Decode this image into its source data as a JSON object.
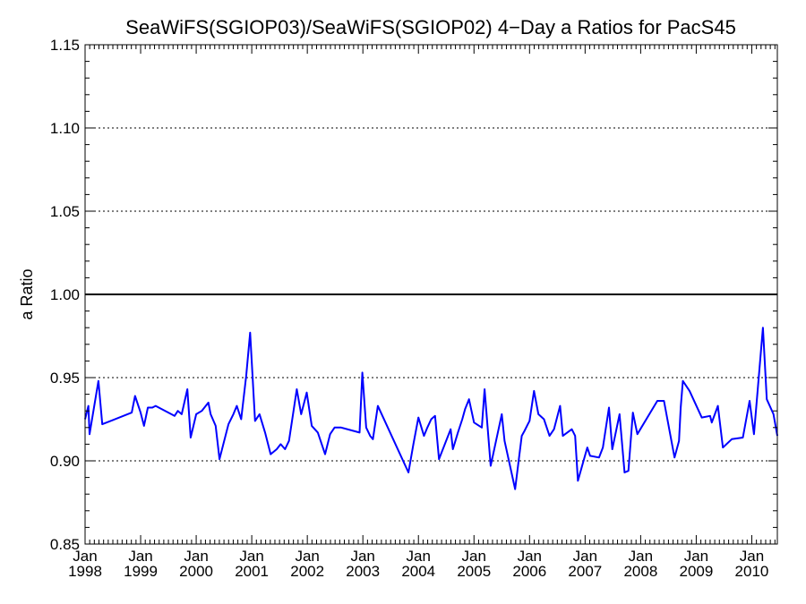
{
  "chart_data": {
    "type": "line",
    "title": "SeaWiFS(SGIOP03)/SeaWiFS(SGIOP02) 4−Day a Ratios for PacS45",
    "xlabel": "",
    "ylabel": "a Ratio",
    "xlim": [
      1998.0,
      2010.46
    ],
    "ylim": [
      0.85,
      1.15
    ],
    "yticks": [
      "0.85",
      "0.90",
      "0.95",
      "1.00",
      "1.05",
      "1.10",
      "1.15"
    ],
    "ytick_values": [
      0.85,
      0.9,
      0.95,
      1.0,
      1.05,
      1.1,
      1.15
    ],
    "xticks": [
      {
        "month": "Jan",
        "year": "1998",
        "t": 1998
      },
      {
        "month": "Jan",
        "year": "1999",
        "t": 1999
      },
      {
        "month": "Jan",
        "year": "2000",
        "t": 2000
      },
      {
        "month": "Jan",
        "year": "2001",
        "t": 2001
      },
      {
        "month": "Jan",
        "year": "2002",
        "t": 2002
      },
      {
        "month": "Jan",
        "year": "2003",
        "t": 2003
      },
      {
        "month": "Jan",
        "year": "2004",
        "t": 2004
      },
      {
        "month": "Jan",
        "year": "2005",
        "t": 2005
      },
      {
        "month": "Jan",
        "year": "2006",
        "t": 2006
      },
      {
        "month": "Jan",
        "year": "2007",
        "t": 2007
      },
      {
        "month": "Jan",
        "year": "2008",
        "t": 2008
      },
      {
        "month": "Jan",
        "year": "2009",
        "t": 2009
      },
      {
        "month": "Jan",
        "year": "2010",
        "t": 2010
      }
    ],
    "grid_y": [
      0.9,
      0.95,
      1.05,
      1.1
    ],
    "reference_line": 1.0,
    "series_color": "#0000ff",
    "series": [
      {
        "x": [
          1998.0,
          1998.06,
          1998.08,
          1998.24,
          1998.31,
          1998.84,
          1998.9,
          1999.0,
          1999.06,
          1999.13,
          1999.21,
          1999.27,
          1999.61,
          1999.67,
          1999.74,
          1999.84,
          1999.9,
          2000.0,
          2000.1,
          2000.22,
          2000.26,
          2000.35,
          2000.42,
          2000.58,
          2000.67,
          2000.73,
          2000.81,
          2000.9,
          2000.97,
          2001.06,
          2001.14,
          2001.24,
          2001.34,
          2001.45,
          2001.52,
          2001.6,
          2001.67,
          2001.81,
          2001.89,
          2001.99,
          2002.08,
          2002.19,
          2002.32,
          2002.41,
          2002.49,
          2002.61,
          2002.94,
          2002.99,
          2003.06,
          2003.13,
          2003.18,
          2003.27,
          2003.82,
          2003.91,
          2004.0,
          2004.1,
          2004.16,
          2004.23,
          2004.3,
          2004.37,
          2004.58,
          2004.62,
          2004.71,
          2004.79,
          2004.84,
          2004.91,
          2005.0,
          2005.14,
          2005.19,
          2005.3,
          2005.5,
          2005.55,
          2005.74,
          2005.86,
          2005.91,
          2005.97,
          2006.0,
          2006.08,
          2006.16,
          2006.26,
          2006.36,
          2006.44,
          2006.55,
          2006.6,
          2006.76,
          2006.82,
          2006.87,
          2007.04,
          2007.09,
          2007.25,
          2007.32,
          2007.43,
          2007.49,
          2007.62,
          2007.71,
          2007.78,
          2007.86,
          2007.94,
          2008.3,
          2008.42,
          2008.61,
          2008.69,
          2008.72,
          2008.76,
          2008.88,
          2009.1,
          2009.25,
          2009.28,
          2009.39,
          2009.48,
          2009.64,
          2009.84,
          2009.96,
          2010.04,
          2010.2,
          2010.27,
          2010.39,
          2010.46
        ],
        "values": [
          0.925,
          0.933,
          0.916,
          0.948,
          0.922,
          0.929,
          0.939,
          0.929,
          0.921,
          0.932,
          0.932,
          0.933,
          0.927,
          0.93,
          0.928,
          0.943,
          0.914,
          0.928,
          0.93,
          0.935,
          0.928,
          0.921,
          0.901,
          0.922,
          0.928,
          0.933,
          0.925,
          0.951,
          0.977,
          0.924,
          0.928,
          0.917,
          0.904,
          0.907,
          0.91,
          0.907,
          0.912,
          0.943,
          0.928,
          0.941,
          0.921,
          0.917,
          0.904,
          0.916,
          0.92,
          0.92,
          0.917,
          0.953,
          0.92,
          0.915,
          0.913,
          0.933,
          0.893,
          0.91,
          0.926,
          0.915,
          0.92,
          0.925,
          0.927,
          0.901,
          0.919,
          0.907,
          0.917,
          0.925,
          0.931,
          0.937,
          0.923,
          0.92,
          0.943,
          0.897,
          0.928,
          0.912,
          0.883,
          0.915,
          0.918,
          0.922,
          0.924,
          0.942,
          0.928,
          0.925,
          0.915,
          0.919,
          0.933,
          0.915,
          0.919,
          0.915,
          0.888,
          0.908,
          0.903,
          0.902,
          0.908,
          0.932,
          0.907,
          0.928,
          0.893,
          0.894,
          0.929,
          0.916,
          0.936,
          0.936,
          0.902,
          0.912,
          0.932,
          0.948,
          0.942,
          0.926,
          0.927,
          0.923,
          0.933,
          0.908,
          0.913,
          0.914,
          0.936,
          0.916,
          0.98,
          0.937,
          0.928,
          0.915
        ]
      }
    ]
  }
}
